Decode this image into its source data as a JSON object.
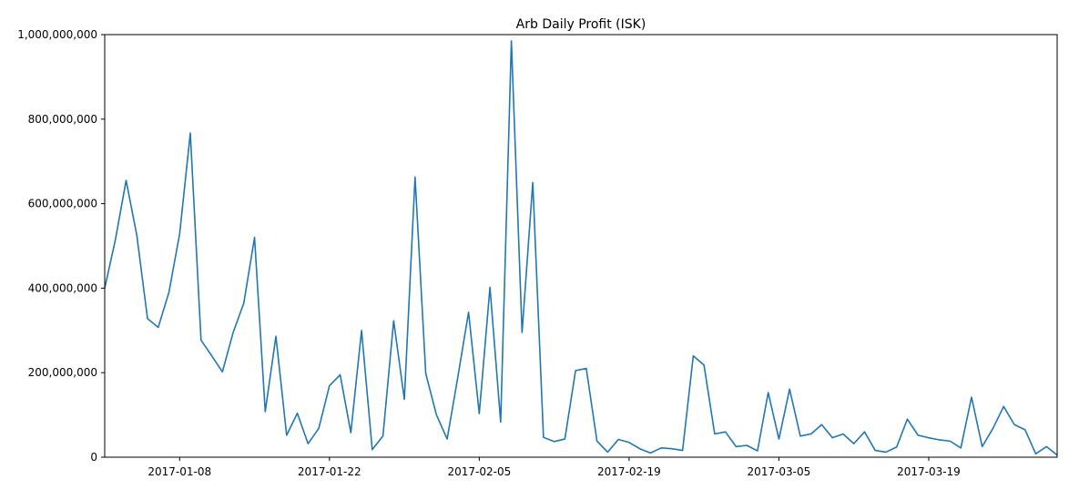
{
  "chart_data": {
    "type": "line",
    "title": "Arb Daily Profit (ISK)",
    "xlabel": "",
    "ylabel": "",
    "ylim": [
      0,
      1000000000
    ],
    "xlim": [
      "2017-01-01",
      "2017-03-31"
    ],
    "grid": false,
    "x_tick_labels": [
      "2017-01-08",
      "2017-01-22",
      "2017-02-05",
      "2017-02-19",
      "2017-03-05",
      "2017-03-19"
    ],
    "y_tick_labels": [
      "0",
      "200,000,000",
      "400,000,000",
      "600,000,000",
      "800,000,000",
      "1,000,000,000"
    ],
    "y_tick_values": [
      0,
      200000000,
      400000000,
      600000000,
      800000000,
      1000000000
    ],
    "line_color": "#1f77b4",
    "series": [
      {
        "x": [
          "2017-01-01",
          "2017-01-02",
          "2017-01-03",
          "2017-01-04",
          "2017-01-05",
          "2017-01-06",
          "2017-01-07",
          "2017-01-08",
          "2017-01-09",
          "2017-01-10",
          "2017-01-11",
          "2017-01-12",
          "2017-01-13",
          "2017-01-14",
          "2017-01-15",
          "2017-01-16",
          "2017-01-17",
          "2017-01-18",
          "2017-01-19",
          "2017-01-20",
          "2017-01-21",
          "2017-01-22",
          "2017-01-23",
          "2017-01-24",
          "2017-01-25",
          "2017-01-26",
          "2017-01-27",
          "2017-01-28",
          "2017-01-29",
          "2017-01-30",
          "2017-01-31",
          "2017-02-01",
          "2017-02-02",
          "2017-02-03",
          "2017-02-04",
          "2017-02-05",
          "2017-02-06",
          "2017-02-07",
          "2017-02-08",
          "2017-02-09",
          "2017-02-10",
          "2017-02-11",
          "2017-02-12",
          "2017-02-13",
          "2017-02-14",
          "2017-02-15",
          "2017-02-16",
          "2017-02-17",
          "2017-02-18",
          "2017-02-19",
          "2017-02-20",
          "2017-02-21",
          "2017-02-22",
          "2017-02-23",
          "2017-02-24",
          "2017-02-25",
          "2017-02-26",
          "2017-02-27",
          "2017-02-28",
          "2017-03-01",
          "2017-03-02",
          "2017-03-03",
          "2017-03-04",
          "2017-03-05",
          "2017-03-06",
          "2017-03-07",
          "2017-03-08",
          "2017-03-09",
          "2017-03-10",
          "2017-03-11",
          "2017-03-12",
          "2017-03-13",
          "2017-03-14",
          "2017-03-15",
          "2017-03-16",
          "2017-03-17",
          "2017-03-18",
          "2017-03-19",
          "2017-03-20",
          "2017-03-21",
          "2017-03-22",
          "2017-03-23",
          "2017-03-24",
          "2017-03-25",
          "2017-03-26",
          "2017-03-27",
          "2017-03-28",
          "2017-03-29",
          "2017-03-30",
          "2017-03-31"
        ],
        "values": [
          400000000,
          515000000,
          655000000,
          525000000,
          328000000,
          307000000,
          390000000,
          528000000,
          767000000,
          277000000,
          240000000,
          202000000,
          295000000,
          365000000,
          520000000,
          108000000,
          286000000,
          52000000,
          104000000,
          32000000,
          68000000,
          169000000,
          195000000,
          58000000,
          300000000,
          18000000,
          50000000,
          323000000,
          137000000,
          663000000,
          198000000,
          100000000,
          43000000,
          190000000,
          343000000,
          103000000,
          402000000,
          83000000,
          985000000,
          295000000,
          650000000,
          47000000,
          37000000,
          43000000,
          205000000,
          210000000,
          38000000,
          12000000,
          42000000,
          35000000,
          20000000,
          10000000,
          22000000,
          20000000,
          16000000,
          240000000,
          218000000,
          55000000,
          60000000,
          25000000,
          28000000,
          15000000,
          153000000,
          43000000,
          161000000,
          50000000,
          55000000,
          77000000,
          46000000,
          55000000,
          32000000,
          60000000,
          16000000,
          12000000,
          24000000,
          90000000,
          52000000,
          46000000,
          41000000,
          38000000,
          22000000,
          142000000,
          25000000,
          68000000,
          120000000,
          77000000,
          65000000,
          8000000,
          25000000,
          5000000
        ]
      }
    ]
  }
}
